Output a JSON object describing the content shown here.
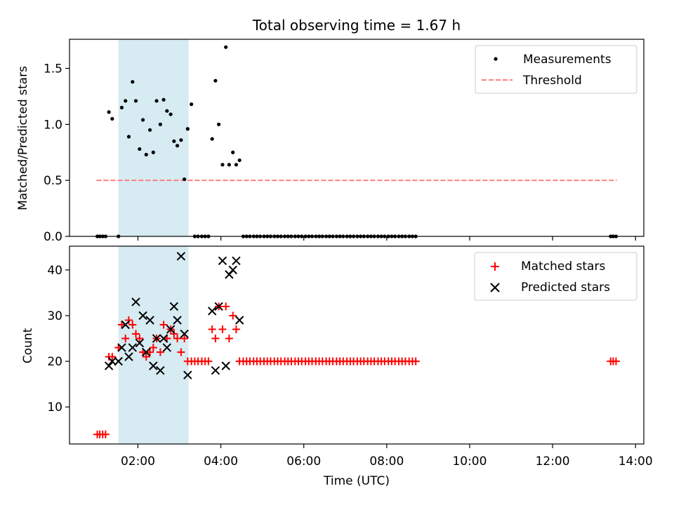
{
  "chart_data": {
    "title": "Total observing time = 1.67 h",
    "xlabel": "Time (UTC)",
    "x_units": "hours UTC",
    "x_ticks": [
      {
        "value": 2,
        "label": "02:00"
      },
      {
        "value": 4,
        "label": "04:00"
      },
      {
        "value": 6,
        "label": "06:00"
      },
      {
        "value": 8,
        "label": "08:00"
      },
      {
        "value": 10,
        "label": "10:00"
      },
      {
        "value": 12,
        "label": "12:00"
      },
      {
        "value": 14,
        "label": "14:00"
      }
    ],
    "xlim": [
      0.35,
      14.2
    ],
    "highlight_span": [
      1.53,
      3.22
    ],
    "highlight_color": "#add8e6",
    "panels": [
      {
        "type": "scatter",
        "ylabel": "Matched/Predicted stars",
        "ylim": [
          0,
          1.76
        ],
        "y_ticks": [
          0.0,
          0.5,
          1.0,
          1.5
        ],
        "y_tick_labels": [
          "0.0",
          "0.5",
          "1.0",
          "1.5"
        ],
        "legend_position": "upper-right",
        "series": [
          {
            "name": "Measurements",
            "marker": "dot",
            "color": "#000000",
            "x": [
              1.02,
              1.08,
              1.15,
              1.22,
              1.3,
              1.38,
              1.53,
              1.61,
              1.7,
              1.78,
              1.87,
              1.95,
              2.04,
              2.12,
              2.2,
              2.29,
              2.37,
              2.45,
              2.54,
              2.62,
              2.7,
              2.79,
              2.87,
              2.95,
              3.04,
              3.12,
              3.2,
              3.29,
              3.37,
              3.45,
              3.54,
              3.62,
              3.7,
              3.79,
              3.87,
              3.95,
              4.04,
              4.12,
              4.2,
              4.29,
              4.37,
              4.45,
              4.54,
              4.62,
              4.7,
              4.79,
              4.87,
              4.95,
              5.04,
              5.12,
              5.2,
              5.29,
              5.37,
              5.45,
              5.54,
              5.62,
              5.7,
              5.79,
              5.87,
              5.95,
              6.04,
              6.12,
              6.2,
              6.29,
              6.37,
              6.45,
              6.54,
              6.62,
              6.7,
              6.79,
              6.87,
              6.95,
              7.04,
              7.12,
              7.2,
              7.29,
              7.37,
              7.45,
              7.54,
              7.62,
              7.7,
              7.79,
              7.87,
              7.95,
              8.04,
              8.12,
              8.2,
              8.29,
              8.37,
              8.45,
              8.54,
              8.62,
              8.7,
              13.4,
              13.46,
              13.53
            ],
            "y": [
              0,
              0,
              0,
              0,
              1.11,
              1.05,
              0,
              1.15,
              1.21,
              0.89,
              1.38,
              1.21,
              0.78,
              1.04,
              0.73,
              0.95,
              0.75,
              1.21,
              1.0,
              1.22,
              1.12,
              1.09,
              0.85,
              0.81,
              0.86,
              0.51,
              0.96,
              1.18,
              0,
              0,
              0,
              0,
              0,
              0.87,
              1.39,
              1.0,
              0.64,
              1.69,
              0.64,
              0.75,
              0.64,
              0.68,
              0,
              0,
              0,
              0,
              0,
              0,
              0,
              0,
              0,
              0,
              0,
              0,
              0,
              0,
              0,
              0,
              0,
              0,
              0,
              0,
              0,
              0,
              0,
              0,
              0,
              0,
              0,
              0,
              0,
              0,
              0,
              0,
              0,
              0,
              0,
              0,
              0,
              0,
              0,
              0,
              0,
              0,
              0,
              0,
              0,
              0,
              0,
              0,
              0,
              0,
              0,
              0,
              0,
              0
            ]
          },
          {
            "name": "Threshold",
            "type": "line",
            "style": "dashed",
            "color": "#ff7f7f",
            "x": [
              1.0,
              13.55
            ],
            "y": [
              0.5,
              0.5
            ]
          }
        ]
      },
      {
        "type": "scatter",
        "ylabel": "Count",
        "ylim": [
          1.9,
          45.2
        ],
        "y_ticks": [
          10,
          20,
          30,
          40
        ],
        "y_tick_labels": [
          "10",
          "20",
          "30",
          "40"
        ],
        "legend_position": "upper-right",
        "series": [
          {
            "name": "Matched stars",
            "marker": "plus",
            "color": "#ff0000",
            "x": [
              1.02,
              1.08,
              1.15,
              1.22,
              1.3,
              1.38,
              1.53,
              1.61,
              1.7,
              1.78,
              1.87,
              1.95,
              2.04,
              2.12,
              2.2,
              2.29,
              2.37,
              2.45,
              2.54,
              2.62,
              2.7,
              2.79,
              2.87,
              2.95,
              3.04,
              3.12,
              3.2,
              3.29,
              3.37,
              3.45,
              3.54,
              3.62,
              3.7,
              3.79,
              3.87,
              3.95,
              4.04,
              4.12,
              4.2,
              4.29,
              4.37,
              4.45,
              4.54,
              4.62,
              4.7,
              4.79,
              4.87,
              4.95,
              5.04,
              5.12,
              5.2,
              5.29,
              5.37,
              5.45,
              5.54,
              5.62,
              5.7,
              5.79,
              5.87,
              5.95,
              6.04,
              6.12,
              6.2,
              6.29,
              6.37,
              6.45,
              6.54,
              6.62,
              6.7,
              6.79,
              6.87,
              6.95,
              7.04,
              7.12,
              7.2,
              7.29,
              7.37,
              7.45,
              7.54,
              7.62,
              7.7,
              7.79,
              7.87,
              7.95,
              8.04,
              8.12,
              8.2,
              8.29,
              8.37,
              8.45,
              8.54,
              8.62,
              8.7,
              13.4,
              13.46,
              13.53
            ],
            "y": [
              4,
              4,
              4,
              4,
              21,
              21,
              23,
              28,
              25,
              29,
              28,
              26,
              25,
              22,
              21,
              22,
              23,
              25,
              22,
              28,
              25,
              27,
              26,
              25,
              22,
              25,
              20,
              20,
              20,
              20,
              20,
              20,
              20,
              27,
              25,
              32,
              27,
              32,
              25,
              30,
              27,
              20,
              20,
              20,
              20,
              20,
              20,
              20,
              20,
              20,
              20,
              20,
              20,
              20,
              20,
              20,
              20,
              20,
              20,
              20,
              20,
              20,
              20,
              20,
              20,
              20,
              20,
              20,
              20,
              20,
              20,
              20,
              20,
              20,
              20,
              20,
              20,
              20,
              20,
              20,
              20,
              20,
              20,
              20,
              20,
              20,
              20,
              20,
              20,
              20,
              20,
              20,
              20,
              20,
              20,
              20
            ]
          },
          {
            "name": "Predicted stars",
            "marker": "x",
            "color": "#000000",
            "x": [
              1.3,
              1.38,
              1.53,
              1.61,
              1.7,
              1.78,
              1.87,
              1.95,
              2.04,
              2.12,
              2.2,
              2.29,
              2.37,
              2.45,
              2.54,
              2.62,
              2.7,
              2.79,
              2.87,
              2.95,
              3.04,
              3.12,
              3.2,
              3.79,
              3.87,
              3.95,
              4.04,
              4.12,
              4.2,
              4.29,
              4.37,
              4.45
            ],
            "y": [
              19,
              20,
              20,
              23,
              28,
              21,
              23,
              33,
              24,
              30,
              22,
              29,
              19,
              25,
              18,
              25,
              23,
              27,
              32,
              29,
              43,
              26,
              17,
              31,
              18,
              32,
              42,
              19,
              39,
              40,
              42,
              29
            ]
          }
        ]
      }
    ]
  }
}
